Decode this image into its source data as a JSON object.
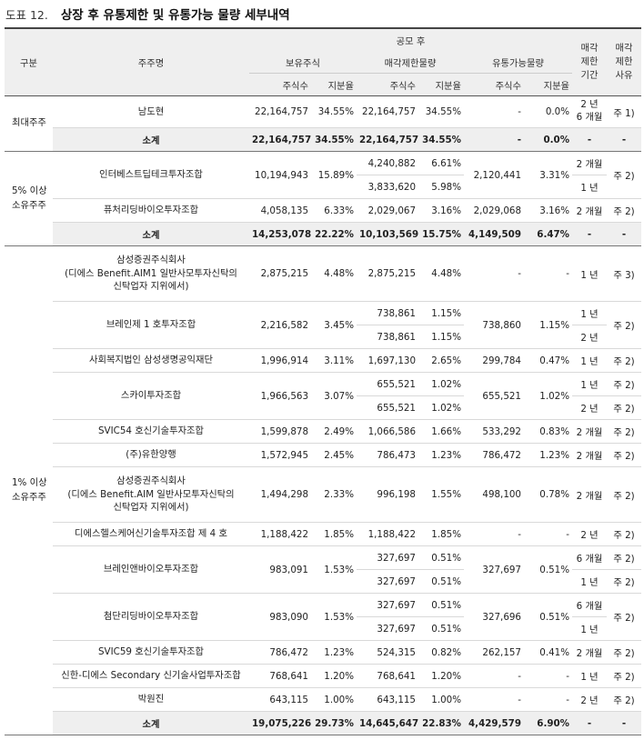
{
  "figure": {
    "number": "도표 12.",
    "title": "상장 후 유통제한 및 유통가능 물량 세부내역"
  },
  "header": {
    "group": "구분",
    "holder": "주주명",
    "post_ipo": "공모 후",
    "holdings": "보유주식",
    "restricted": "매각제한물량",
    "tradable": "유통가능물량",
    "lockup_period": "매각\n제한\n기간",
    "lockup_reason": "매각\n제한\n사유",
    "shares": "주식수",
    "ratio": "지분율"
  },
  "rows": [
    {
      "group": "최대주주",
      "name": "남도현",
      "hold_shares": "22,164,757",
      "hold_ratio": "34.55%",
      "res_shares": "22,164,757",
      "res_ratio": "34.55%",
      "trd_shares": "-",
      "trd_ratio": "0.0%",
      "period": "2 년\n6 개월",
      "reason": "주 1)"
    },
    {
      "subtotal": true,
      "name": "소계",
      "hold_shares": "22,164,757",
      "hold_ratio": "34.55%",
      "res_shares": "22,164,757",
      "res_ratio": "34.55%",
      "trd_shares": "-",
      "trd_ratio": "0.0%",
      "period": "-",
      "reason": "-"
    },
    {
      "group": "5% 이상\n소유주주",
      "name": "인터베스트딥테크투자조합",
      "hold_shares": "10,194,943",
      "hold_ratio": "15.89%",
      "res_shares": "4,240,882",
      "res_ratio": "6.61%",
      "trd_shares": "2,120,441",
      "trd_ratio": "3.31%",
      "period": "2 개월",
      "reason": "주 2)"
    },
    {
      "res_shares": "3,833,620",
      "res_ratio": "5.98%",
      "period": "1 년"
    },
    {
      "name": "퓨처리딩바이오투자조합",
      "hold_shares": "4,058,135",
      "hold_ratio": "6.33%",
      "res_shares": "2,029,067",
      "res_ratio": "3.16%",
      "trd_shares": "2,029,068",
      "trd_ratio": "3.16%",
      "period": "2 개월",
      "reason": "주 2)"
    },
    {
      "subtotal": true,
      "name": "소계",
      "hold_shares": "14,253,078",
      "hold_ratio": "22.22%",
      "res_shares": "10,103,569",
      "res_ratio": "15.75%",
      "trd_shares": "4,149,509",
      "trd_ratio": "6.47%",
      "period": "-",
      "reason": "-"
    },
    {
      "group": "1% 이상\n소유주주",
      "name": "삼성증권주식회사\n(디에스 Benefit.AIM1 일반사모투자신탁의\n신탁업자 지위에서)",
      "hold_shares": "2,875,215",
      "hold_ratio": "4.48%",
      "res_shares": "2,875,215",
      "res_ratio": "4.48%",
      "trd_shares": "-",
      "trd_ratio": "-",
      "period": "1 년",
      "reason": "주 3)"
    },
    {
      "name": "브레인제 1 호투자조합",
      "hold_shares": "2,216,582",
      "hold_ratio": "3.45%",
      "res_shares": "738,861",
      "res_ratio": "1.15%",
      "trd_shares": "738,860",
      "trd_ratio": "1.15%",
      "period": "1 년",
      "reason": "주 2)"
    },
    {
      "res_shares": "738,861",
      "res_ratio": "1.15%",
      "period": "2 년"
    },
    {
      "name": "사회복지법인 삼성생명공익재단",
      "hold_shares": "1,996,914",
      "hold_ratio": "3.11%",
      "res_shares": "1,697,130",
      "res_ratio": "2.65%",
      "trd_shares": "299,784",
      "trd_ratio": "0.47%",
      "period": "1 년",
      "reason": "주 2)"
    },
    {
      "name": "스카이투자조합",
      "hold_shares": "1,966,563",
      "hold_ratio": "3.07%",
      "res_shares": "655,521",
      "res_ratio": "1.02%",
      "trd_shares": "655,521",
      "trd_ratio": "1.02%",
      "period": "1 년",
      "reason": "주 2)"
    },
    {
      "res_shares": "655,521",
      "res_ratio": "1.02%",
      "period": "2 년",
      "reason": "주 2)"
    },
    {
      "name": "SVIC54 호신기술투자조합",
      "hold_shares": "1,599,878",
      "hold_ratio": "2.49%",
      "res_shares": "1,066,586",
      "res_ratio": "1.66%",
      "trd_shares": "533,292",
      "trd_ratio": "0.83%",
      "period": "2 개월",
      "reason": "주 2)"
    },
    {
      "name": "(주)유한양행",
      "hold_shares": "1,572,945",
      "hold_ratio": "2.45%",
      "res_shares": "786,473",
      "res_ratio": "1.23%",
      "trd_shares": "786,472",
      "trd_ratio": "1.23%",
      "period": "2 개월",
      "reason": "주 2)"
    },
    {
      "name": "삼성증권주식회사\n(디에스 Benefit.AIM 일반사모투자신탁의\n신탁업자 지위에서)",
      "hold_shares": "1,494,298",
      "hold_ratio": "2.33%",
      "res_shares": "996,198",
      "res_ratio": "1.55%",
      "trd_shares": "498,100",
      "trd_ratio": "0.78%",
      "period": "2 개월",
      "reason": "주 2)"
    },
    {
      "name": "디에스헬스케어신기술투자조합 제 4 호",
      "hold_shares": "1,188,422",
      "hold_ratio": "1.85%",
      "res_shares": "1,188,422",
      "res_ratio": "1.85%",
      "trd_shares": "-",
      "trd_ratio": "-",
      "period": "2 년",
      "reason": "주 2)"
    },
    {
      "name": "브레인앤바이오투자조합",
      "hold_shares": "983,091",
      "hold_ratio": "1.53%",
      "res_shares": "327,697",
      "res_ratio": "0.51%",
      "trd_shares": "327,697",
      "trd_ratio": "0.51%",
      "period": "6 개월",
      "reason": "주 2)"
    },
    {
      "res_shares": "327,697",
      "res_ratio": "0.51%",
      "period": "1 년",
      "reason": "주 2)"
    },
    {
      "name": "첨단리딩바이오투자조합",
      "hold_shares": "983,090",
      "hold_ratio": "1.53%",
      "res_shares": "327,697",
      "res_ratio": "0.51%",
      "trd_shares": "327,696",
      "trd_ratio": "0.51%",
      "period": "6 개월",
      "reason": "주 2)"
    },
    {
      "res_shares": "327,697",
      "res_ratio": "0.51%",
      "period": "1 년"
    },
    {
      "name": "SVIC59 호신기술투자조합",
      "hold_shares": "786,472",
      "hold_ratio": "1.23%",
      "res_shares": "524,315",
      "res_ratio": "0.82%",
      "trd_shares": "262,157",
      "trd_ratio": "0.41%",
      "period": "2 개월",
      "reason": "주 2)"
    },
    {
      "name": "신한-디에스 Secondary 신기술사업투자조합",
      "hold_shares": "768,641",
      "hold_ratio": "1.20%",
      "res_shares": "768,641",
      "res_ratio": "1.20%",
      "trd_shares": "-",
      "trd_ratio": "-",
      "period": "1 년",
      "reason": "주 2)"
    },
    {
      "name": "박원진",
      "hold_shares": "643,115",
      "hold_ratio": "1.00%",
      "res_shares": "643,115",
      "res_ratio": "1.00%",
      "trd_shares": "-",
      "trd_ratio": "-",
      "period": "2 년",
      "reason": "주 2)"
    },
    {
      "subtotal": true,
      "name": "소계",
      "hold_shares": "19,075,226",
      "hold_ratio": "29.73%",
      "res_shares": "14,645,647",
      "res_ratio": "22.83%",
      "trd_shares": "4,429,579",
      "trd_ratio": "6.90%",
      "period": "-",
      "reason": "-"
    }
  ]
}
